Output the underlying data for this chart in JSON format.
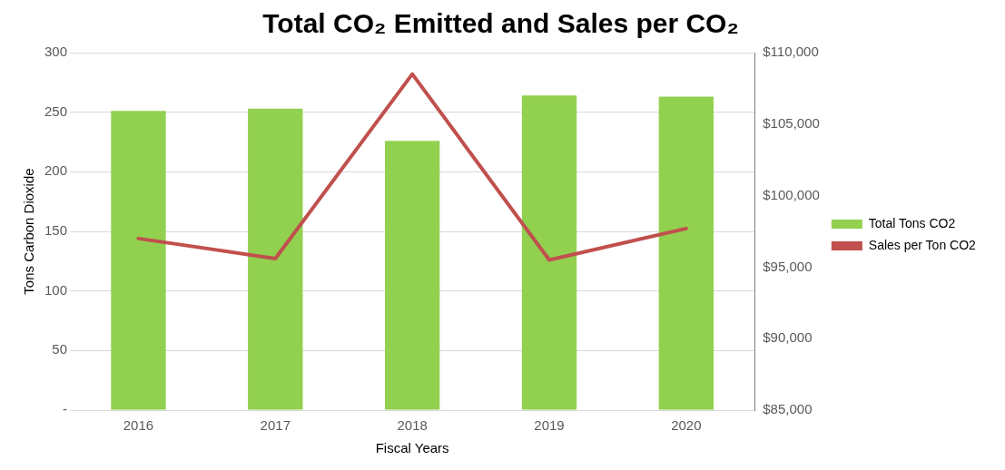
{
  "chart_data": {
    "type": "bar",
    "title": "Total CO₂ Emitted and Sales per CO₂",
    "xlabel": "Fiscal Years",
    "ylabel": "Tons Carbon Dioxide",
    "categories": [
      "2016",
      "2017",
      "2018",
      "2019",
      "2020"
    ],
    "series": [
      {
        "name": "Total Tons CO2",
        "color": "#92d050",
        "values": [
          251,
          253,
          226,
          264,
          263
        ]
      },
      {
        "name": "Sales per Ton CO2",
        "type": "line",
        "axis": "y2",
        "color": "#c0504d",
        "values": [
          97000,
          95600,
          108500,
          95500,
          97700
        ]
      }
    ],
    "ylim": [
      0,
      300
    ],
    "yticks": [
      {
        "value": 0,
        "label": "-"
      },
      50,
      100,
      150,
      200,
      250,
      300
    ],
    "y2lim": [
      85000,
      110000
    ],
    "y2ticks": [
      {
        "value": 85000,
        "label": "$85,000"
      },
      {
        "value": 90000,
        "label": "$90,000"
      },
      {
        "value": 95000,
        "label": "$95,000"
      },
      {
        "value": 100000,
        "label": "$100,000"
      },
      {
        "value": 105000,
        "label": "$105,000"
      },
      {
        "value": 110000,
        "label": "$110,000"
      }
    ],
    "grid": "y",
    "legend": "right",
    "marker": "none",
    "line_style": "solid"
  }
}
